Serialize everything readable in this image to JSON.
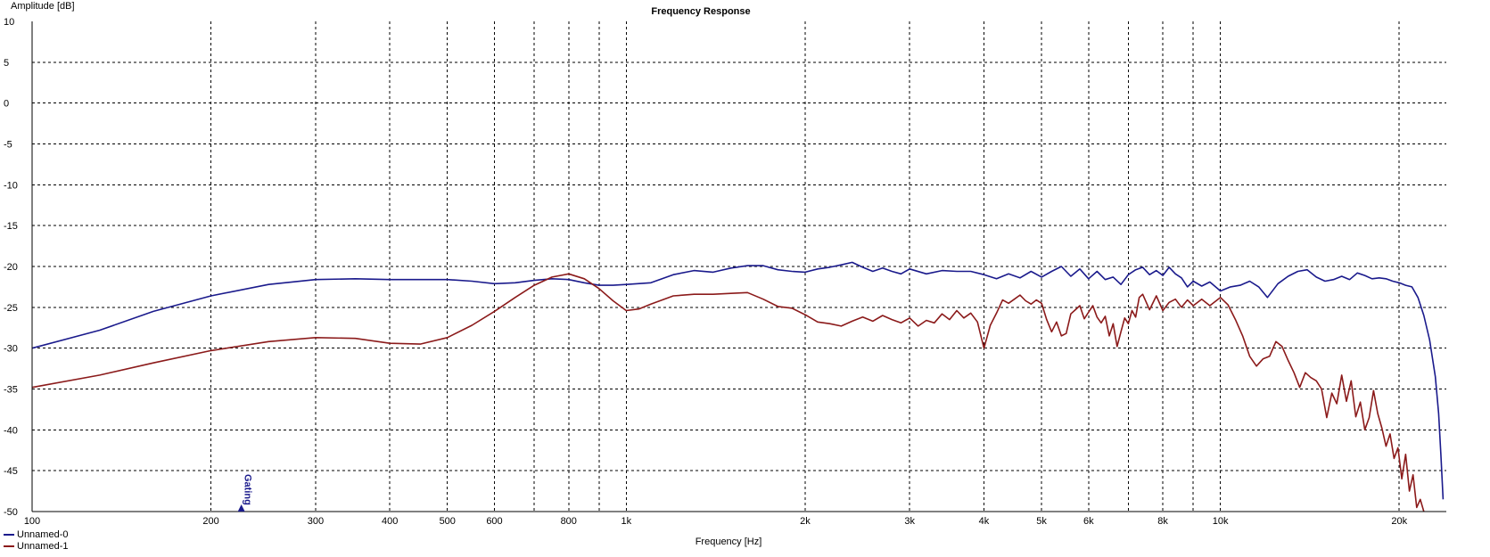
{
  "chart_data": {
    "type": "line",
    "title": "Frequency Response",
    "xlabel": "Frequency [Hz]",
    "ylabel": "Amplitude [dB]",
    "xscale": "log",
    "xlim": [
      100,
      24000
    ],
    "ylim": [
      -50,
      10
    ],
    "grid": true,
    "legend": "bottom-left",
    "x_ticks": [
      {
        "value": 100,
        "label": "100"
      },
      {
        "value": 200,
        "label": "200"
      },
      {
        "value": 300,
        "label": "300"
      },
      {
        "value": 400,
        "label": "400"
      },
      {
        "value": 500,
        "label": "500"
      },
      {
        "value": 600,
        "label": "600"
      },
      {
        "value": 800,
        "label": "800"
      },
      {
        "value": 1000,
        "label": "1k"
      },
      {
        "value": 2000,
        "label": "2k"
      },
      {
        "value": 3000,
        "label": "3k"
      },
      {
        "value": 4000,
        "label": "4k"
      },
      {
        "value": 5000,
        "label": "5k"
      },
      {
        "value": 6000,
        "label": "6k"
      },
      {
        "value": 8000,
        "label": "8k"
      },
      {
        "value": 10000,
        "label": "10k"
      },
      {
        "value": 20000,
        "label": "20k"
      }
    ],
    "x_minor_grid": [
      700,
      900,
      7000,
      9000
    ],
    "y_ticks": [
      10,
      5,
      0,
      -5,
      -10,
      -15,
      -20,
      -25,
      -30,
      -35,
      -40,
      -45,
      -50
    ],
    "series": [
      {
        "name": "Unnamed-0",
        "color": "#1a1a8c",
        "points": [
          [
            100,
            -30.0
          ],
          [
            130,
            -27.8
          ],
          [
            160,
            -25.5
          ],
          [
            200,
            -23.6
          ],
          [
            250,
            -22.2
          ],
          [
            300,
            -21.6
          ],
          [
            350,
            -21.5
          ],
          [
            400,
            -21.6
          ],
          [
            500,
            -21.6
          ],
          [
            550,
            -21.8
          ],
          [
            600,
            -22.1
          ],
          [
            650,
            -22.0
          ],
          [
            700,
            -21.7
          ],
          [
            750,
            -21.5
          ],
          [
            800,
            -21.6
          ],
          [
            850,
            -22.0
          ],
          [
            900,
            -22.3
          ],
          [
            950,
            -22.3
          ],
          [
            1000,
            -22.2
          ],
          [
            1100,
            -22.0
          ],
          [
            1200,
            -21.0
          ],
          [
            1300,
            -20.5
          ],
          [
            1400,
            -20.7
          ],
          [
            1500,
            -20.2
          ],
          [
            1600,
            -19.9
          ],
          [
            1700,
            -19.9
          ],
          [
            1800,
            -20.4
          ],
          [
            1900,
            -20.6
          ],
          [
            2000,
            -20.7
          ],
          [
            2100,
            -20.3
          ],
          [
            2200,
            -20.1
          ],
          [
            2300,
            -19.8
          ],
          [
            2400,
            -19.5
          ],
          [
            2500,
            -20.1
          ],
          [
            2600,
            -20.6
          ],
          [
            2700,
            -20.2
          ],
          [
            2800,
            -20.6
          ],
          [
            2900,
            -20.9
          ],
          [
            3000,
            -20.3
          ],
          [
            3200,
            -20.9
          ],
          [
            3400,
            -20.5
          ],
          [
            3600,
            -20.6
          ],
          [
            3800,
            -20.6
          ],
          [
            4000,
            -21.0
          ],
          [
            4200,
            -21.5
          ],
          [
            4400,
            -20.9
          ],
          [
            4600,
            -21.4
          ],
          [
            4800,
            -20.6
          ],
          [
            5000,
            -21.3
          ],
          [
            5200,
            -20.6
          ],
          [
            5400,
            -20.0
          ],
          [
            5600,
            -21.2
          ],
          [
            5800,
            -20.3
          ],
          [
            6000,
            -21.5
          ],
          [
            6200,
            -20.6
          ],
          [
            6400,
            -21.6
          ],
          [
            6600,
            -21.3
          ],
          [
            6800,
            -22.2
          ],
          [
            7000,
            -21.0
          ],
          [
            7200,
            -20.4
          ],
          [
            7400,
            -20.1
          ],
          [
            7600,
            -21.0
          ],
          [
            7800,
            -20.5
          ],
          [
            8000,
            -21.1
          ],
          [
            8200,
            -20.1
          ],
          [
            8400,
            -20.9
          ],
          [
            8600,
            -21.4
          ],
          [
            8800,
            -22.5
          ],
          [
            9000,
            -21.8
          ],
          [
            9300,
            -22.4
          ],
          [
            9600,
            -21.9
          ],
          [
            10000,
            -23.0
          ],
          [
            10400,
            -22.5
          ],
          [
            10800,
            -22.3
          ],
          [
            11200,
            -21.8
          ],
          [
            11600,
            -22.5
          ],
          [
            12000,
            -23.8
          ],
          [
            12500,
            -22.1
          ],
          [
            13000,
            -21.2
          ],
          [
            13500,
            -20.6
          ],
          [
            14000,
            -20.4
          ],
          [
            14500,
            -21.3
          ],
          [
            15000,
            -21.8
          ],
          [
            15500,
            -21.6
          ],
          [
            16000,
            -21.2
          ],
          [
            16500,
            -21.6
          ],
          [
            17000,
            -20.8
          ],
          [
            17500,
            -21.1
          ],
          [
            18000,
            -21.5
          ],
          [
            18500,
            -21.4
          ],
          [
            19000,
            -21.5
          ],
          [
            19500,
            -21.8
          ],
          [
            20000,
            -22.0
          ],
          [
            20500,
            -22.3
          ],
          [
            21000,
            -22.5
          ],
          [
            21500,
            -23.8
          ],
          [
            22000,
            -26.0
          ],
          [
            22500,
            -29.0
          ],
          [
            23000,
            -33.5
          ],
          [
            23300,
            -38.0
          ],
          [
            23500,
            -43.0
          ],
          [
            23700,
            -48.5
          ]
        ]
      },
      {
        "name": "Unnamed-1",
        "color": "#8b1a1a",
        "points": [
          [
            100,
            -34.8
          ],
          [
            130,
            -33.3
          ],
          [
            160,
            -31.8
          ],
          [
            200,
            -30.3
          ],
          [
            250,
            -29.2
          ],
          [
            300,
            -28.7
          ],
          [
            350,
            -28.8
          ],
          [
            400,
            -29.4
          ],
          [
            450,
            -29.5
          ],
          [
            500,
            -28.7
          ],
          [
            550,
            -27.2
          ],
          [
            600,
            -25.5
          ],
          [
            650,
            -23.8
          ],
          [
            700,
            -22.3
          ],
          [
            750,
            -21.3
          ],
          [
            800,
            -20.9
          ],
          [
            850,
            -21.5
          ],
          [
            900,
            -22.7
          ],
          [
            950,
            -24.2
          ],
          [
            1000,
            -25.4
          ],
          [
            1050,
            -25.2
          ],
          [
            1100,
            -24.6
          ],
          [
            1200,
            -23.6
          ],
          [
            1300,
            -23.4
          ],
          [
            1400,
            -23.4
          ],
          [
            1500,
            -23.3
          ],
          [
            1600,
            -23.2
          ],
          [
            1700,
            -24.0
          ],
          [
            1800,
            -24.9
          ],
          [
            1900,
            -25.1
          ],
          [
            2000,
            -25.9
          ],
          [
            2100,
            -26.8
          ],
          [
            2200,
            -27.0
          ],
          [
            2300,
            -27.3
          ],
          [
            2400,
            -26.7
          ],
          [
            2500,
            -26.2
          ],
          [
            2600,
            -26.7
          ],
          [
            2700,
            -26.0
          ],
          [
            2800,
            -26.5
          ],
          [
            2900,
            -26.9
          ],
          [
            3000,
            -26.3
          ],
          [
            3100,
            -27.3
          ],
          [
            3200,
            -26.6
          ],
          [
            3300,
            -26.9
          ],
          [
            3400,
            -25.8
          ],
          [
            3500,
            -26.5
          ],
          [
            3600,
            -25.4
          ],
          [
            3700,
            -26.3
          ],
          [
            3800,
            -25.7
          ],
          [
            3900,
            -26.8
          ],
          [
            4000,
            -30.0
          ],
          [
            4100,
            -27.2
          ],
          [
            4200,
            -25.7
          ],
          [
            4300,
            -24.1
          ],
          [
            4400,
            -24.5
          ],
          [
            4500,
            -24.0
          ],
          [
            4600,
            -23.5
          ],
          [
            4700,
            -24.2
          ],
          [
            4800,
            -24.6
          ],
          [
            4900,
            -24.1
          ],
          [
            5000,
            -24.5
          ],
          [
            5100,
            -26.5
          ],
          [
            5200,
            -28.0
          ],
          [
            5300,
            -26.8
          ],
          [
            5400,
            -28.5
          ],
          [
            5500,
            -28.2
          ],
          [
            5600,
            -25.8
          ],
          [
            5700,
            -25.3
          ],
          [
            5800,
            -24.8
          ],
          [
            5900,
            -26.4
          ],
          [
            6000,
            -25.6
          ],
          [
            6100,
            -24.8
          ],
          [
            6200,
            -26.2
          ],
          [
            6300,
            -26.9
          ],
          [
            6400,
            -26.1
          ],
          [
            6500,
            -28.5
          ],
          [
            6600,
            -27.0
          ],
          [
            6700,
            -29.8
          ],
          [
            6800,
            -28.0
          ],
          [
            6900,
            -26.3
          ],
          [
            7000,
            -27.0
          ],
          [
            7100,
            -25.4
          ],
          [
            7200,
            -26.2
          ],
          [
            7300,
            -23.8
          ],
          [
            7400,
            -23.4
          ],
          [
            7600,
            -25.3
          ],
          [
            7800,
            -23.6
          ],
          [
            8000,
            -25.4
          ],
          [
            8200,
            -24.4
          ],
          [
            8400,
            -24.0
          ],
          [
            8600,
            -25.0
          ],
          [
            8800,
            -24.1
          ],
          [
            9000,
            -24.8
          ],
          [
            9300,
            -24.0
          ],
          [
            9600,
            -24.8
          ],
          [
            10000,
            -23.8
          ],
          [
            10300,
            -24.7
          ],
          [
            10600,
            -26.5
          ],
          [
            10900,
            -28.5
          ],
          [
            11200,
            -31.0
          ],
          [
            11500,
            -32.2
          ],
          [
            11800,
            -31.3
          ],
          [
            12100,
            -31.0
          ],
          [
            12400,
            -29.2
          ],
          [
            12700,
            -29.8
          ],
          [
            13000,
            -31.5
          ],
          [
            13300,
            -33.0
          ],
          [
            13600,
            -34.8
          ],
          [
            13900,
            -33.0
          ],
          [
            14200,
            -33.6
          ],
          [
            14500,
            -34.0
          ],
          [
            14800,
            -35.0
          ],
          [
            15100,
            -38.5
          ],
          [
            15400,
            -35.5
          ],
          [
            15700,
            -36.8
          ],
          [
            16000,
            -33.3
          ],
          [
            16300,
            -36.5
          ],
          [
            16600,
            -34.0
          ],
          [
            16900,
            -38.4
          ],
          [
            17200,
            -36.6
          ],
          [
            17500,
            -40.0
          ],
          [
            17800,
            -38.5
          ],
          [
            18100,
            -35.2
          ],
          [
            18400,
            -38.0
          ],
          [
            18700,
            -39.8
          ],
          [
            19000,
            -42.0
          ],
          [
            19300,
            -40.5
          ],
          [
            19600,
            -43.5
          ],
          [
            19900,
            -42.2
          ],
          [
            20200,
            -46.0
          ],
          [
            20500,
            -43.0
          ],
          [
            20800,
            -47.5
          ],
          [
            21100,
            -45.5
          ],
          [
            21400,
            -49.5
          ],
          [
            21700,
            -48.5
          ],
          [
            22000,
            -50.0
          ]
        ]
      }
    ],
    "annotations": [
      {
        "label": "Gating",
        "x": 225,
        "color": "#1a1a8c"
      }
    ]
  }
}
